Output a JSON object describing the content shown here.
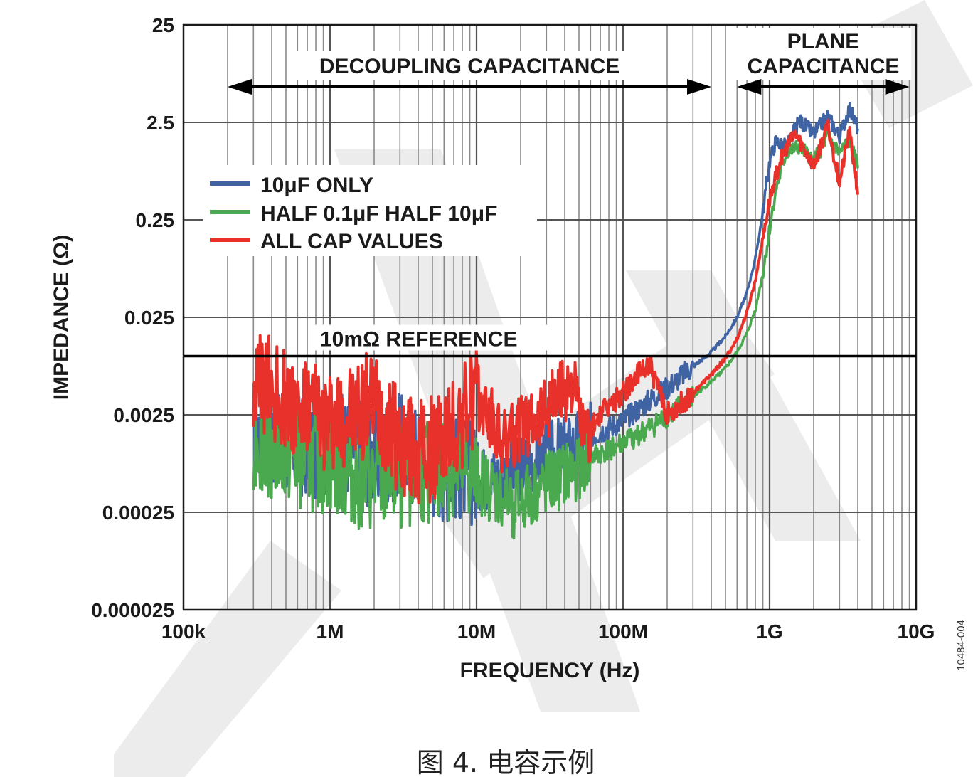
{
  "chart_data": {
    "type": "line",
    "xscale": "log",
    "yscale": "log",
    "xlim": [
      100000,
      10000000000
    ],
    "ylim": [
      2.5e-05,
      25
    ],
    "xlabel": "FREQUENCY (Hz)",
    "ylabel": "IMPEDANCE (Ω)",
    "x_ticks": [
      {
        "value": 100000,
        "label": "100k"
      },
      {
        "value": 1000000,
        "label": "1M"
      },
      {
        "value": 10000000,
        "label": "10M"
      },
      {
        "value": 100000000,
        "label": "100M"
      },
      {
        "value": 1000000000,
        "label": "1G"
      },
      {
        "value": 10000000000,
        "label": "10G"
      }
    ],
    "y_ticks": [
      {
        "value": 25,
        "label": "25"
      },
      {
        "value": 2.5,
        "label": "2.5"
      },
      {
        "value": 0.25,
        "label": "0.25"
      },
      {
        "value": 0.025,
        "label": "0.025"
      },
      {
        "value": 0.0025,
        "label": "0.0025"
      },
      {
        "value": 0.00025,
        "label": "0.00025"
      },
      {
        "value": 2.5e-05,
        "label": "0.000025"
      }
    ],
    "annotations": {
      "decoupling_label": "DECOUPLING CAPACITANCE",
      "decoupling_range": [
        200000,
        400000000
      ],
      "plane_label_line1": "PLANE",
      "plane_label_line2": "CAPACITANCE",
      "plane_range": [
        600000000,
        9000000000
      ],
      "reference_label": "10mΩ REFERENCE",
      "reference_value": 0.01
    },
    "series": [
      {
        "name": "10μF ONLY",
        "color": "#3f63a3",
        "x": [
          300000,
          400000,
          600000,
          1000000,
          1500000,
          2000000,
          3000000,
          5000000,
          8000000,
          12000000,
          18000000,
          25000000,
          40000000,
          60000000,
          100000000,
          150000000,
          200000000,
          300000000,
          400000000,
          500000000,
          600000000,
          700000000,
          800000000,
          900000000,
          1000000000,
          1100000000,
          1300000000,
          1600000000,
          2000000000,
          2500000000,
          3000000000,
          3500000000,
          4000000000
        ],
        "y": [
          0.0018,
          0.0015,
          0.0012,
          0.0011,
          0.0013,
          0.0009,
          0.0012,
          0.00075,
          0.0007,
          0.00055,
          0.00065,
          0.0009,
          0.0011,
          0.0015,
          0.0022,
          0.0035,
          0.0048,
          0.0078,
          0.011,
          0.016,
          0.025,
          0.045,
          0.1,
          0.3,
          1.0,
          1.6,
          1.4,
          2.6,
          1.9,
          2.9,
          1.8,
          3.5,
          2.2
        ]
      },
      {
        "name": "HALF 0.1μF HALF 10μF",
        "color": "#4aa84f",
        "x": [
          300000,
          400000,
          600000,
          1000000,
          1500000,
          2000000,
          3000000,
          5000000,
          8000000,
          12000000,
          18000000,
          25000000,
          40000000,
          60000000,
          100000000,
          150000000,
          200000000,
          300000000,
          400000000,
          500000000,
          600000000,
          700000000,
          800000000,
          900000000,
          1000000000,
          1100000000,
          1300000000,
          1600000000,
          2000000000,
          2500000000,
          3000000000,
          3500000000,
          4000000000
        ],
        "y": [
          0.0015,
          0.0012,
          0.0009,
          0.0008,
          0.0006,
          0.0005,
          0.0006,
          0.0007,
          0.0007,
          0.00045,
          0.0003,
          0.0004,
          0.0006,
          0.0009,
          0.0013,
          0.0018,
          0.0024,
          0.0038,
          0.0055,
          0.0075,
          0.011,
          0.017,
          0.03,
          0.07,
          0.2,
          0.5,
          1.2,
          1.4,
          1.0,
          1.8,
          1.2,
          1.6,
          0.9
        ]
      },
      {
        "name": "ALL CAP VALUES",
        "color": "#e8312a",
        "x": [
          300000,
          400000,
          600000,
          1000000,
          1500000,
          2000000,
          2500000,
          3000000,
          4000000,
          5000000,
          7000000,
          10000000,
          12000000,
          15000000,
          20000000,
          30000000,
          45000000,
          55000000,
          70000000,
          100000000,
          150000000,
          200000000,
          300000000,
          400000000,
          500000000,
          600000000,
          700000000,
          800000000,
          1000000000,
          1200000000,
          1500000000,
          2000000000,
          2500000000,
          3000000000,
          3500000000,
          4000000000
        ],
        "y": [
          0.005,
          0.0045,
          0.003,
          0.0022,
          0.0025,
          0.0035,
          0.002,
          0.0012,
          0.001,
          0.0011,
          0.0017,
          0.0038,
          0.0025,
          0.0012,
          0.0018,
          0.0032,
          0.0055,
          0.0014,
          0.0025,
          0.0042,
          0.0085,
          0.0025,
          0.0042,
          0.0065,
          0.0095,
          0.015,
          0.028,
          0.06,
          0.4,
          1.1,
          1.9,
          0.9,
          2.3,
          0.6,
          2.0,
          0.5
        ]
      }
    ],
    "legend_position": "upper-left",
    "figure_id": "10484-004"
  },
  "caption": "图 4. 电容示例"
}
